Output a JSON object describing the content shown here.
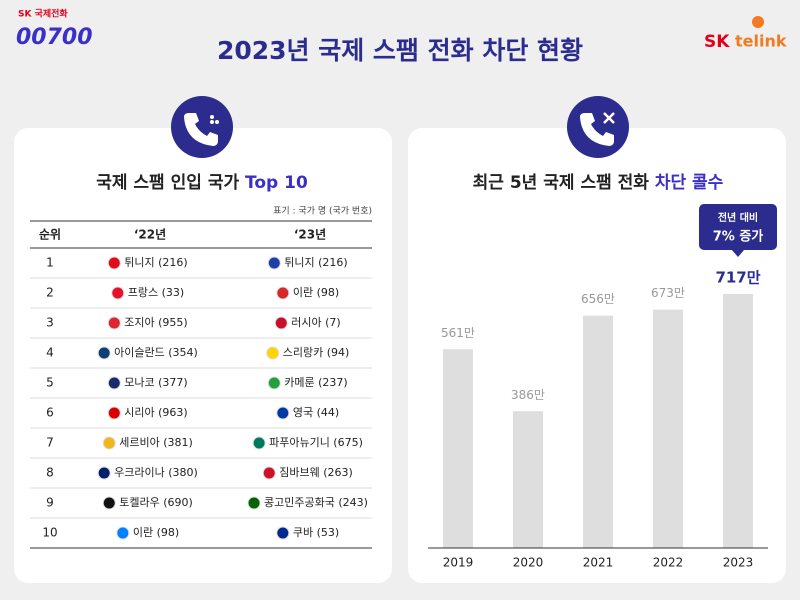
{
  "header": {
    "brand_left_small": "SK 국제전화",
    "brand_left": "00700",
    "title": "2023년 국제 스팸 전화 차단 현황",
    "brand_right_sk": "SK",
    "brand_right": "telink"
  },
  "table": {
    "title": "국제 스팸 인입 국가 ",
    "title_highlight": "Top 10",
    "note": "표기 : 국가 명 (국가 번호)",
    "columns": [
      "순위",
      "‘22년",
      "‘23년"
    ],
    "rows": [
      [
        "1",
        "튀니지 (216)",
        "튀니지 (216)"
      ],
      [
        "2",
        "프랑스 (33)",
        "이란 (98)"
      ],
      [
        "3",
        "조지아 (955)",
        "러시아 (7)"
      ],
      [
        "4",
        "아이슬란드 (354)",
        "스리랑카 (94)"
      ],
      [
        "5",
        "모나코 (377)",
        "카메룬 (237)"
      ],
      [
        "6",
        "시리아 (963)",
        "영국 (44)"
      ],
      [
        "7",
        "세르비아 (381)",
        "파푸아뉴기니 (675)"
      ],
      [
        "8",
        "우크라이나 (380)",
        "짐바브웨 (263)"
      ],
      [
        "9",
        "토켈라우 (690)",
        "콩고민주공화국 (243)"
      ],
      [
        "10",
        "이란 (98)",
        "쿠바 (53)"
      ]
    ]
  },
  "chart_data": {
    "type": "bar",
    "title": "최근 5년 국제 스팸 전화 ",
    "title_highlight": "차단 콜수",
    "categories": [
      "2019",
      "2020",
      "2021",
      "2022",
      "2023"
    ],
    "values": [
      561,
      386,
      656,
      673,
      717
    ],
    "value_labels": [
      "561만",
      "386만",
      "656만",
      "673만",
      "717만"
    ],
    "color": "#dedede",
    "highlight_color": "#2b2c8e",
    "callout": [
      "전년 대비",
      "7% 증가"
    ]
  }
}
